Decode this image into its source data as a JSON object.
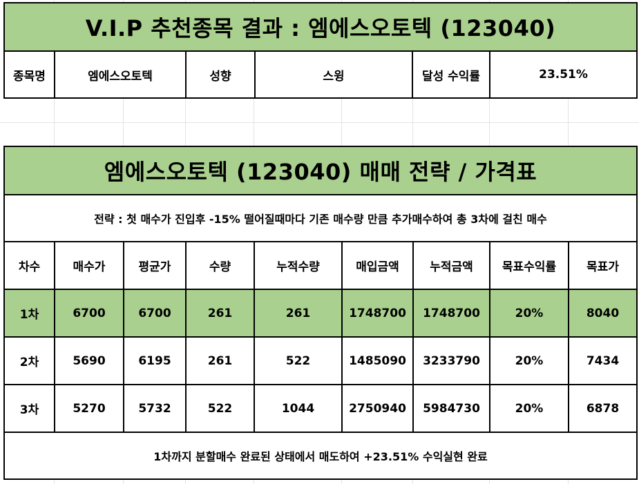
{
  "summary": {
    "title": "V.I.P 추천종목 결과 : 엠에스오토텍 (123040)",
    "labels": {
      "name": "종목명",
      "style": "성향",
      "yield": "달성 수익률"
    },
    "values": {
      "name": "엠에스오토텍",
      "style": "스윙",
      "yield": "23.51%"
    }
  },
  "plan": {
    "title": "엠에스오토텍 (123040) 매매 전략 / 가격표",
    "strategy": "전략 : 첫 매수가 진입후 -15% 떨어질때마다 기존 매수량 만큼 추가매수하여 총 3차에 걸친 매수",
    "headers": [
      "차수",
      "매수가",
      "평균가",
      "수량",
      "누적수량",
      "매입금액",
      "누적금액",
      "목표수익률",
      "목표가"
    ],
    "rows": [
      [
        "1차",
        "6700",
        "6700",
        "261",
        "261",
        "1748700",
        "1748700",
        "20%",
        "8040"
      ],
      [
        "2차",
        "5690",
        "6195",
        "261",
        "522",
        "1485090",
        "3233790",
        "20%",
        "7434"
      ],
      [
        "3차",
        "5270",
        "5732",
        "522",
        "1044",
        "2750940",
        "5984730",
        "20%",
        "6878"
      ]
    ],
    "footer": "1차까지 분할매수 완료된 상태에서 매도하여 +23.51% 수익실현 완료"
  },
  "colors": {
    "highlight": "#a9d08e",
    "border": "#000000",
    "gridline": "#e3e3e3"
  }
}
